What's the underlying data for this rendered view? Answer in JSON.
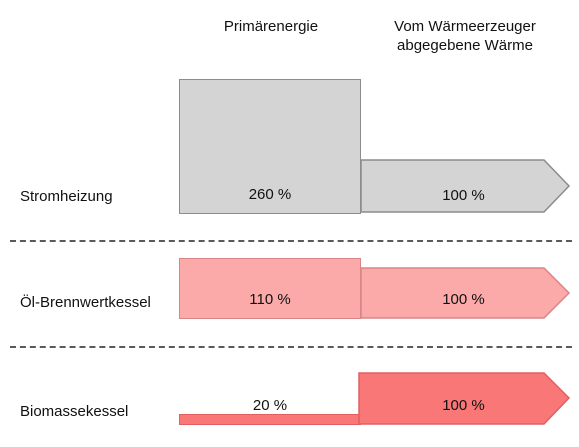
{
  "headers": {
    "primary": "Primärenergie",
    "delivered_line1": "Vom Wärmeerzeuger",
    "delivered_line2": "abgegebene Wärme"
  },
  "rows": [
    {
      "label": "Stromheizung",
      "primary_label": "260 %",
      "primary_value": 260,
      "delivered_label": "100 %",
      "delivered_value": 100,
      "fill": "#d4d4d4",
      "stroke": "#8c8c8c"
    },
    {
      "label": "Öl-Brennwertkessel",
      "primary_label": "110 %",
      "primary_value": 110,
      "delivered_label": "100 %",
      "delivered_value": 100,
      "fill": "#fba9a9",
      "stroke": "#d98585"
    },
    {
      "label": "Biomassekessel",
      "primary_label": "20 %",
      "primary_value": 20,
      "delivered_label": "100 %",
      "delivered_value": 100,
      "fill": "#f97777",
      "stroke": "#e06060"
    }
  ],
  "colors": {
    "divider": "#5a5a5a",
    "background": "#ffffff"
  }
}
